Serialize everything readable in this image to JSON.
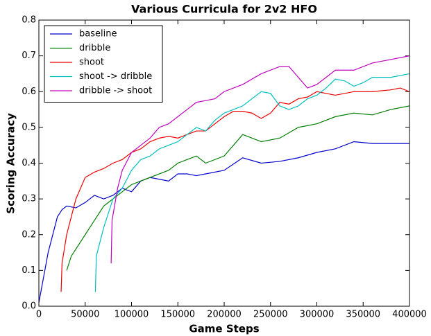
{
  "chart_data": {
    "type": "line",
    "title": "Various Curricula for 2v2 HFO",
    "x_label": "Game Steps",
    "y_label": "Scoring Accuracy",
    "xlim": [
      0,
      400000
    ],
    "xticks": [
      0,
      50000,
      100000,
      150000,
      200000,
      250000,
      300000,
      350000,
      400000
    ],
    "ylim": [
      0,
      0.8
    ],
    "yticks": [
      {
        "value": 0,
        "label": "0.0"
      },
      0.1,
      0.2,
      0.3,
      0.4,
      0.5,
      0.6,
      0.7,
      0.8
    ],
    "legend": "upper left",
    "grid": false,
    "series": [
      {
        "name": "baseline",
        "color": "#0000cc",
        "x": [
          0,
          10000,
          20000,
          25000,
          30000,
          40000,
          50000,
          60000,
          70000,
          80000,
          90000,
          100000,
          110000,
          120000,
          140000,
          150000,
          160000,
          170000,
          180000,
          200000,
          220000,
          240000,
          260000,
          280000,
          300000,
          320000,
          340000,
          360000,
          380000,
          400000
        ],
        "values": [
          0.01,
          0.15,
          0.25,
          0.27,
          0.28,
          0.275,
          0.29,
          0.31,
          0.3,
          0.31,
          0.33,
          0.32,
          0.35,
          0.36,
          0.35,
          0.37,
          0.37,
          0.365,
          0.37,
          0.38,
          0.415,
          0.4,
          0.405,
          0.415,
          0.43,
          0.44,
          0.46,
          0.455,
          0.455,
          0.455
        ]
      },
      {
        "name": "dribble",
        "color": "#007f00",
        "x": [
          30000,
          35000,
          40000,
          50000,
          60000,
          70000,
          80000,
          90000,
          100000,
          110000,
          120000,
          140000,
          150000,
          160000,
          170000,
          180000,
          200000,
          220000,
          230000,
          240000,
          260000,
          280000,
          300000,
          320000,
          340000,
          360000,
          380000,
          400000
        ],
        "values": [
          0.1,
          0.14,
          0.16,
          0.2,
          0.24,
          0.28,
          0.3,
          0.32,
          0.34,
          0.35,
          0.36,
          0.38,
          0.4,
          0.41,
          0.42,
          0.4,
          0.42,
          0.48,
          0.47,
          0.46,
          0.47,
          0.5,
          0.51,
          0.53,
          0.54,
          0.535,
          0.55,
          0.56
        ]
      },
      {
        "name": "shoot",
        "color": "#ee0000",
        "x": [
          24000,
          25000,
          30000,
          40000,
          50000,
          60000,
          70000,
          80000,
          90000,
          100000,
          110000,
          120000,
          130000,
          140000,
          150000,
          160000,
          170000,
          180000,
          190000,
          200000,
          210000,
          220000,
          230000,
          240000,
          250000,
          260000,
          270000,
          280000,
          290000,
          300000,
          320000,
          340000,
          360000,
          380000,
          390000,
          400000
        ],
        "values": [
          0.04,
          0.12,
          0.2,
          0.3,
          0.36,
          0.375,
          0.385,
          0.4,
          0.41,
          0.43,
          0.44,
          0.46,
          0.47,
          0.475,
          0.47,
          0.48,
          0.49,
          0.49,
          0.51,
          0.53,
          0.545,
          0.545,
          0.54,
          0.525,
          0.54,
          0.57,
          0.565,
          0.58,
          0.585,
          0.6,
          0.59,
          0.6,
          0.6,
          0.605,
          0.61,
          0.6
        ]
      },
      {
        "name": "shoot -> dribble",
        "color": "#00bfbf",
        "x": [
          61000,
          62000,
          70000,
          80000,
          90000,
          100000,
          110000,
          120000,
          130000,
          140000,
          150000,
          160000,
          170000,
          180000,
          190000,
          200000,
          210000,
          220000,
          230000,
          240000,
          250000,
          260000,
          270000,
          280000,
          290000,
          300000,
          310000,
          320000,
          330000,
          340000,
          350000,
          360000,
          380000,
          400000
        ],
        "values": [
          0.04,
          0.14,
          0.22,
          0.3,
          0.33,
          0.38,
          0.41,
          0.42,
          0.44,
          0.45,
          0.46,
          0.48,
          0.5,
          0.49,
          0.52,
          0.54,
          0.55,
          0.56,
          0.58,
          0.6,
          0.595,
          0.56,
          0.55,
          0.56,
          0.58,
          0.59,
          0.61,
          0.635,
          0.63,
          0.615,
          0.625,
          0.64,
          0.64,
          0.65
        ]
      },
      {
        "name": "dribble -> shoot",
        "color": "#bf00bf",
        "x": [
          78000,
          79000,
          85000,
          90000,
          100000,
          110000,
          120000,
          130000,
          140000,
          150000,
          160000,
          170000,
          180000,
          190000,
          200000,
          220000,
          240000,
          260000,
          270000,
          280000,
          290000,
          300000,
          310000,
          320000,
          340000,
          360000,
          380000,
          400000
        ],
        "values": [
          0.12,
          0.24,
          0.33,
          0.38,
          0.43,
          0.45,
          0.47,
          0.5,
          0.51,
          0.53,
          0.55,
          0.57,
          0.575,
          0.58,
          0.6,
          0.62,
          0.65,
          0.67,
          0.67,
          0.64,
          0.61,
          0.62,
          0.64,
          0.66,
          0.66,
          0.68,
          0.69,
          0.7
        ]
      }
    ]
  }
}
